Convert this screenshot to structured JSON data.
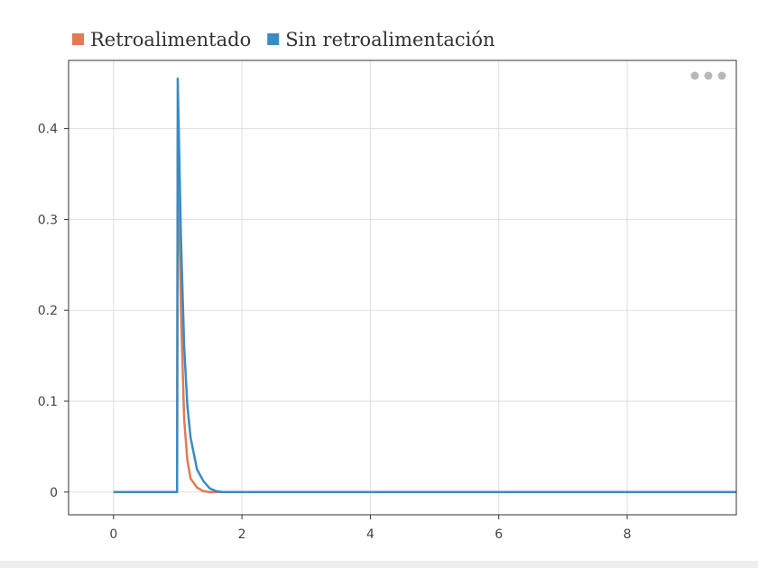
{
  "menu": {
    "icon": "more-dots-icon"
  },
  "chart_data": {
    "type": "line",
    "title": "",
    "xlabel": "",
    "ylabel": "",
    "xlim": [
      -0.7,
      9.7
    ],
    "ylim": [
      -0.025,
      0.475
    ],
    "grid": true,
    "legend_position": "top-left",
    "xticks": [
      0,
      2,
      4,
      6,
      8
    ],
    "xtick_labels": [
      "0",
      "2",
      "4",
      "6",
      "8"
    ],
    "yticks": [
      0,
      0.1,
      0.2,
      0.3,
      0.4
    ],
    "ytick_labels": [
      "0",
      "0.1",
      "0.2",
      "0.3",
      "0.4"
    ],
    "series": [
      {
        "name": "Retroalimentado",
        "color": "#e07b54",
        "x": [
          0,
          0.99,
          1.0,
          1.05,
          1.1,
          1.15,
          1.2,
          1.3,
          1.4,
          1.5,
          1.6,
          2,
          9.7
        ],
        "y": [
          0,
          0,
          0.39,
          0.2,
          0.08,
          0.035,
          0.015,
          0.005,
          0.001,
          0,
          0,
          0,
          0
        ]
      },
      {
        "name": "Sin retroalimentación",
        "color": "#3a8cc2",
        "x": [
          0,
          0.99,
          1.0,
          1.05,
          1.1,
          1.15,
          1.2,
          1.3,
          1.4,
          1.5,
          1.6,
          1.7,
          2,
          9.7
        ],
        "y": [
          0,
          0,
          0.455,
          0.28,
          0.16,
          0.095,
          0.06,
          0.025,
          0.012,
          0.004,
          0.001,
          0,
          0,
          0
        ]
      }
    ]
  }
}
